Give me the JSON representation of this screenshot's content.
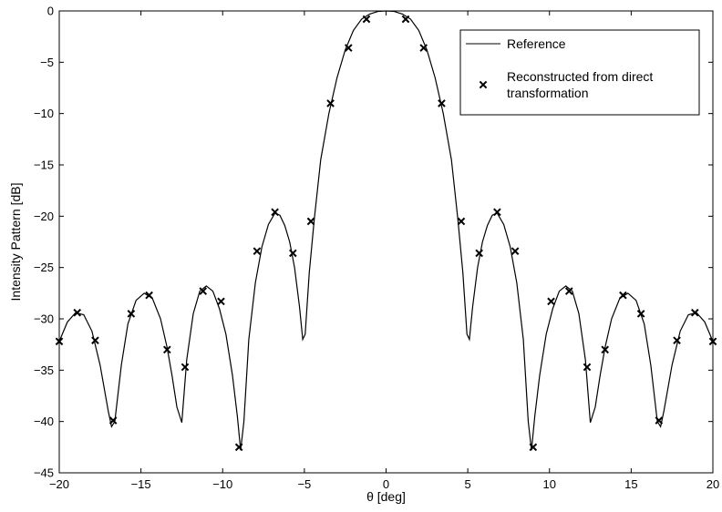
{
  "chart_data": {
    "type": "line",
    "title": "",
    "xlabel": "θ [deg]",
    "ylabel": "Intensity Pattern [dB]",
    "xlim": [
      -20,
      20
    ],
    "ylim": [
      -45,
      0
    ],
    "xticks": [
      -20,
      -15,
      -10,
      -5,
      0,
      5,
      10,
      15,
      20
    ],
    "yticks": [
      0,
      -5,
      -10,
      -15,
      -20,
      -25,
      -30,
      -35,
      -40,
      -45
    ],
    "xtick_labels": [
      "−20",
      "−15",
      "−10",
      "−5",
      "0",
      "5",
      "10",
      "15",
      "20"
    ],
    "ytick_labels": [
      "0",
      "−5",
      "−10",
      "−15",
      "−20",
      "−25",
      "−30",
      "−35",
      "−40",
      "−45"
    ],
    "grid": false,
    "legend_position": "top-right",
    "series": [
      {
        "name": "Reference",
        "style": "solid-line",
        "color": "#000000",
        "x": [
          -20,
          -19.5,
          -19,
          -18.5,
          -18,
          -17.5,
          -17,
          -16.8,
          -16.6,
          -16.2,
          -15.8,
          -15.3,
          -14.8,
          -14.3,
          -13.8,
          -13.4,
          -13.1,
          -12.8,
          -12.5,
          -12.2,
          -11.8,
          -11.4,
          -11.0,
          -10.6,
          -10.2,
          -9.8,
          -9.4,
          -9.1,
          -8.9,
          -8.7,
          -8.4,
          -8.0,
          -7.6,
          -7.2,
          -6.8,
          -6.5,
          -6.2,
          -5.9,
          -5.6,
          -5.3,
          -5.1,
          -4.95,
          -4.7,
          -4.4,
          -4.0,
          -3.5,
          -3.0,
          -2.5,
          -2.0,
          -1.5,
          -1.0,
          -0.5,
          0,
          0.5,
          1.0,
          1.5,
          2.0,
          2.5,
          3.0,
          3.5,
          4.0,
          4.4,
          4.7,
          4.95,
          5.1,
          5.3,
          5.6,
          5.9,
          6.2,
          6.5,
          6.8,
          7.2,
          7.6,
          8.0,
          8.4,
          8.7,
          8.9,
          9.1,
          9.4,
          9.8,
          10.2,
          10.6,
          11.0,
          11.4,
          11.8,
          12.2,
          12.5,
          12.8,
          13.1,
          13.4,
          13.8,
          14.3,
          14.8,
          15.3,
          15.8,
          16.2,
          16.6,
          16.8,
          17,
          17.5,
          18,
          18.5,
          19,
          19.5,
          20
        ],
        "values": [
          -32.2,
          -30.3,
          -29.4,
          -29.6,
          -31.2,
          -34.5,
          -39.0,
          -40.5,
          -40.0,
          -34.5,
          -30.5,
          -28.2,
          -27.5,
          -28.0,
          -30.0,
          -32.8,
          -35.5,
          -38.6,
          -40.1,
          -34.0,
          -29.5,
          -27.3,
          -26.8,
          -27.3,
          -29.0,
          -31.5,
          -35.5,
          -39.5,
          -42.8,
          -40.0,
          -32.0,
          -26.5,
          -23.0,
          -20.8,
          -19.7,
          -19.9,
          -20.9,
          -22.5,
          -25.0,
          -28.8,
          -32.0,
          -31.5,
          -25.5,
          -20.4,
          -14.5,
          -10.0,
          -6.5,
          -3.8,
          -1.9,
          -0.8,
          -0.3,
          -0.05,
          0,
          -0.05,
          -0.3,
          -0.8,
          -1.9,
          -3.8,
          -6.5,
          -10.0,
          -14.5,
          -20.4,
          -25.5,
          -31.5,
          -32.0,
          -28.8,
          -25.0,
          -22.5,
          -20.9,
          -19.9,
          -19.7,
          -20.8,
          -23.0,
          -26.5,
          -32.0,
          -40.0,
          -42.8,
          -39.5,
          -35.5,
          -31.5,
          -29.0,
          -27.3,
          -26.8,
          -27.3,
          -29.5,
          -34.0,
          -40.1,
          -38.6,
          -35.5,
          -32.8,
          -30.0,
          -28.0,
          -27.5,
          -28.2,
          -30.5,
          -34.5,
          -40.0,
          -40.5,
          -39.0,
          -34.5,
          -31.2,
          -29.6,
          -29.4,
          -30.3,
          -32.2
        ]
      },
      {
        "name": "Reconstructed from direct transformation",
        "style": "x-markers",
        "color": "#000000",
        "x": [
          -20,
          -18.9,
          -17.8,
          -16.7,
          -15.6,
          -14.5,
          -13.4,
          -12.3,
          -11.2,
          -10.1,
          -9.0,
          -7.9,
          -6.8,
          -5.7,
          -4.6,
          -3.4,
          -2.3,
          -1.2,
          1.2,
          2.3,
          3.4,
          4.6,
          5.7,
          6.8,
          7.9,
          9.0,
          10.1,
          11.2,
          12.3,
          13.4,
          14.5,
          15.6,
          16.7,
          17.8,
          18.9,
          20
        ],
        "values": [
          -32.2,
          -29.4,
          -32.1,
          -39.9,
          -29.5,
          -27.7,
          -33.0,
          -34.7,
          -27.3,
          -28.3,
          -42.5,
          -23.4,
          -19.6,
          -23.6,
          -20.5,
          -9.0,
          -3.6,
          -0.8,
          -0.8,
          -3.6,
          -9.0,
          -20.5,
          -23.6,
          -19.6,
          -23.4,
          -42.5,
          -28.3,
          -27.3,
          -34.7,
          -33.0,
          -27.7,
          -29.5,
          -39.9,
          -32.1,
          -29.4,
          -32.2
        ]
      }
    ]
  },
  "legend": {
    "reference_label": "Reference",
    "reconstructed_label_line1": "Reconstructed from direct",
    "reconstructed_label_line2": "transformation"
  }
}
